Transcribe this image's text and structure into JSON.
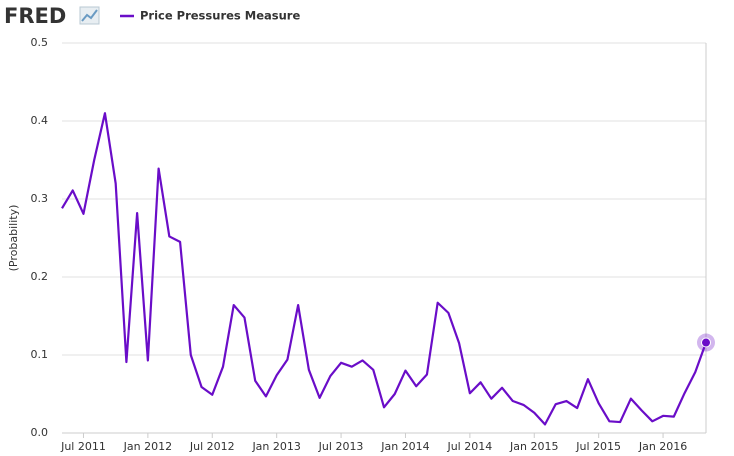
{
  "chart_data": {
    "type": "line",
    "logo": "FRED",
    "y_label": "(Probability)",
    "x": [
      "2011-05",
      "2011-06",
      "2011-07",
      "2011-08",
      "2011-09",
      "2011-10",
      "2011-11",
      "2011-12",
      "2012-01",
      "2012-02",
      "2012-03",
      "2012-04",
      "2012-05",
      "2012-06",
      "2012-07",
      "2012-08",
      "2012-09",
      "2012-10",
      "2012-11",
      "2012-12",
      "2013-01",
      "2013-02",
      "2013-03",
      "2013-04",
      "2013-05",
      "2013-06",
      "2013-07",
      "2013-08",
      "2013-09",
      "2013-10",
      "2013-11",
      "2013-12",
      "2014-01",
      "2014-02",
      "2014-03",
      "2014-04",
      "2014-05",
      "2014-06",
      "2014-07",
      "2014-08",
      "2014-09",
      "2014-10",
      "2014-11",
      "2014-12",
      "2015-01",
      "2015-02",
      "2015-03",
      "2015-04",
      "2015-05",
      "2015-06",
      "2015-07",
      "2015-08",
      "2015-09",
      "2015-10",
      "2015-11",
      "2015-12",
      "2016-01",
      "2016-02",
      "2016-03",
      "2016-04",
      "2016-05"
    ],
    "series": [
      {
        "name": "Price Pressures Measure",
        "color": "#6a0dc8",
        "values": [
          0.288,
          0.311,
          0.281,
          0.35,
          0.41,
          0.32,
          0.091,
          0.282,
          0.093,
          0.339,
          0.252,
          0.245,
          0.1,
          0.059,
          0.049,
          0.085,
          0.164,
          0.148,
          0.067,
          0.047,
          0.074,
          0.094,
          0.164,
          0.081,
          0.045,
          0.073,
          0.09,
          0.085,
          0.093,
          0.081,
          0.033,
          0.05,
          0.08,
          0.06,
          0.075,
          0.167,
          0.154,
          0.115,
          0.051,
          0.065,
          0.044,
          0.058,
          0.041,
          0.036,
          0.026,
          0.011,
          0.037,
          0.041,
          0.032,
          0.069,
          0.038,
          0.015,
          0.014,
          0.044,
          0.029,
          0.015,
          0.022,
          0.021,
          0.051,
          0.078,
          0.116
        ]
      }
    ],
    "xlim": [
      "2011-05",
      "2016-05"
    ],
    "xticks": [
      {
        "value": "2011-07",
        "label": "Jul 2011"
      },
      {
        "value": "2012-01",
        "label": "Jan 2012"
      },
      {
        "value": "2012-07",
        "label": "Jul 2012"
      },
      {
        "value": "2013-01",
        "label": "Jan 2013"
      },
      {
        "value": "2013-07",
        "label": "Jul 2013"
      },
      {
        "value": "2014-01",
        "label": "Jan 2014"
      },
      {
        "value": "2014-07",
        "label": "Jul 2014"
      },
      {
        "value": "2015-01",
        "label": "Jan 2015"
      },
      {
        "value": "2015-07",
        "label": "Jul 2015"
      },
      {
        "value": "2016-01",
        "label": "Jan 2016"
      }
    ],
    "ylim": [
      0,
      0.5
    ],
    "yticks": [
      {
        "value": 0,
        "label": "0.0"
      },
      0.1,
      0.2,
      0.3,
      0.4,
      0.5
    ],
    "grid": true
  }
}
